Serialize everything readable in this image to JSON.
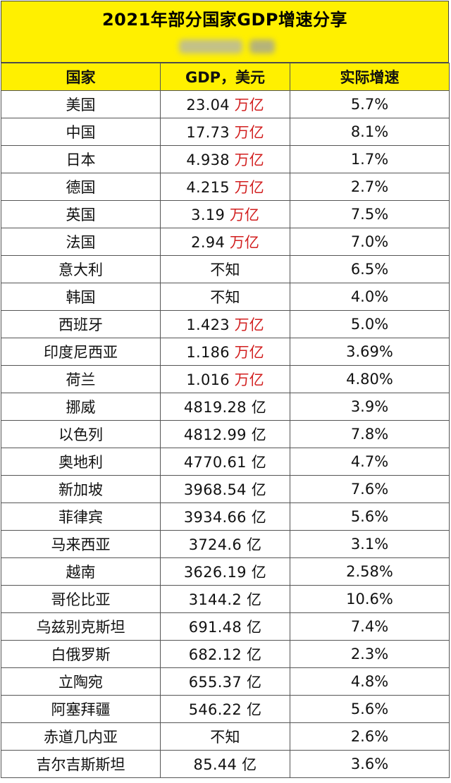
{
  "title": "2021年部分国家GDP增速分享",
  "headers": [
    "国家",
    "GDP，美元",
    "实际增速"
  ],
  "unit_color": "#d21f1f",
  "rows": [
    {
      "country": "美国",
      "gdp": "23.04",
      "unit": "万亿",
      "growth": "5.7%"
    },
    {
      "country": "中国",
      "gdp": "17.73",
      "unit": "万亿",
      "growth": "8.1%"
    },
    {
      "country": "日本",
      "gdp": "4.938",
      "unit": "万亿",
      "growth": "1.7%"
    },
    {
      "country": "德国",
      "gdp": "4.215",
      "unit": "万亿",
      "growth": "2.7%"
    },
    {
      "country": "英国",
      "gdp": "3.19",
      "unit": "万亿",
      "growth": "7.5%"
    },
    {
      "country": "法国",
      "gdp": "2.94",
      "unit": "万亿",
      "growth": "7.0%"
    },
    {
      "country": "意大利",
      "gdp": "不知",
      "unit": "",
      "growth": "6.5%"
    },
    {
      "country": "韩国",
      "gdp": "不知",
      "unit": "",
      "growth": "4.0%"
    },
    {
      "country": "西班牙",
      "gdp": "1.423",
      "unit": "万亿",
      "growth": "5.0%"
    },
    {
      "country": "印度尼西亚",
      "gdp": "1.186",
      "unit": "万亿",
      "growth": "3.69%"
    },
    {
      "country": "荷兰",
      "gdp": "1.016",
      "unit": "万亿",
      "growth": "4.80%"
    },
    {
      "country": "挪威",
      "gdp": "4819.28 亿",
      "unit": "",
      "growth": "3.9%"
    },
    {
      "country": "以色列",
      "gdp": "4812.99 亿",
      "unit": "",
      "growth": "7.8%"
    },
    {
      "country": "奥地利",
      "gdp": "4770.61 亿",
      "unit": "",
      "growth": "4.7%"
    },
    {
      "country": "新加坡",
      "gdp": "3968.54 亿",
      "unit": "",
      "growth": "7.6%"
    },
    {
      "country": "菲律宾",
      "gdp": "3934.66 亿",
      "unit": "",
      "growth": "5.6%"
    },
    {
      "country": "马来西亚",
      "gdp": "3724.6 亿",
      "unit": "",
      "growth": "3.1%"
    },
    {
      "country": "越南",
      "gdp": "3626.19 亿",
      "unit": "",
      "growth": "2.58%"
    },
    {
      "country": "哥伦比亚",
      "gdp": "3144.2 亿",
      "unit": "",
      "growth": "10.6%"
    },
    {
      "country": "乌兹别克斯坦",
      "gdp": "691.48 亿",
      "unit": "",
      "growth": "7.4%"
    },
    {
      "country": "白俄罗斯",
      "gdp": "682.12 亿",
      "unit": "",
      "growth": "2.3%"
    },
    {
      "country": "立陶宛",
      "gdp": "655.37 亿",
      "unit": "",
      "growth": "4.8%"
    },
    {
      "country": "阿塞拜疆",
      "gdp": "546.22 亿",
      "unit": "",
      "growth": "5.6%"
    },
    {
      "country": "赤道几内亚",
      "gdp": "不知",
      "unit": "",
      "growth": "2.6%"
    },
    {
      "country": "吉尔吉斯斯坦",
      "gdp": "85.44 亿",
      "unit": "",
      "growth": "3.6%"
    }
  ]
}
